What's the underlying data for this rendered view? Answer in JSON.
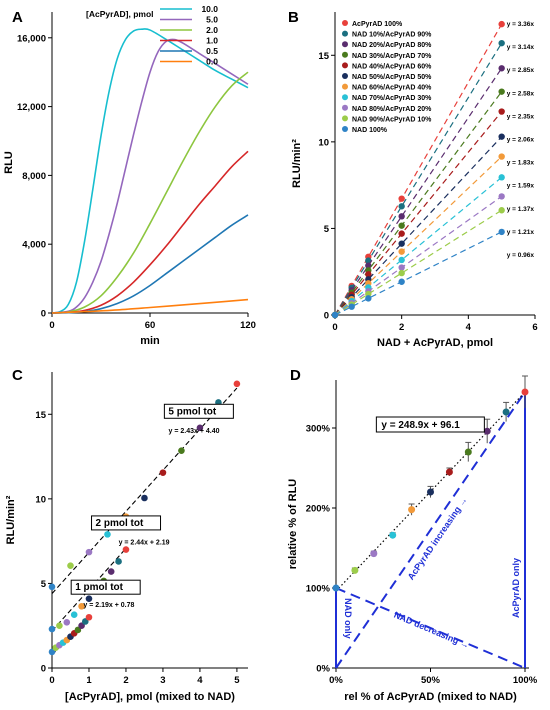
{
  "chart_data": [
    {
      "panel": "A",
      "type": "line",
      "xlabel": "min",
      "ylabel": "RLU",
      "xlim": [
        0,
        120
      ],
      "ylim": [
        0,
        17500
      ],
      "xticks": [
        0,
        60,
        120
      ],
      "yticks": [
        0,
        4000,
        8000,
        12000,
        16000
      ],
      "ytick_labels": [
        "0",
        "4,000",
        "8,000",
        "12,000",
        "16,000"
      ],
      "legend_title": "[AcPyrAD], pmol",
      "legend_position": "top-right",
      "grid": false,
      "series": [
        {
          "name": "10.0",
          "color": "#17becf",
          "x": [
            0,
            5,
            10,
            15,
            20,
            25,
            30,
            35,
            40,
            45,
            50,
            55,
            60,
            70,
            80,
            90,
            100,
            110,
            120
          ],
          "y": [
            0,
            80,
            500,
            1800,
            4200,
            7200,
            10300,
            12900,
            14800,
            15900,
            16400,
            16500,
            16450,
            15900,
            15300,
            14700,
            14100,
            13600,
            13100
          ]
        },
        {
          "name": "5.0",
          "color": "#9467bd",
          "x": [
            0,
            10,
            15,
            20,
            25,
            30,
            35,
            40,
            45,
            50,
            55,
            60,
            65,
            70,
            75,
            80,
            90,
            100,
            110,
            120
          ],
          "y": [
            0,
            100,
            350,
            900,
            1800,
            3000,
            4600,
            6400,
            8400,
            10400,
            12300,
            14000,
            15200,
            15800,
            15900,
            15700,
            15100,
            14500,
            13900,
            13300
          ]
        },
        {
          "name": "2.0",
          "color": "#8dc63f",
          "x": [
            0,
            10,
            20,
            30,
            40,
            50,
            60,
            70,
            80,
            90,
            100,
            110,
            120
          ],
          "y": [
            0,
            60,
            350,
            1000,
            2100,
            3500,
            5200,
            7000,
            8800,
            10500,
            12000,
            13200,
            14000
          ]
        },
        {
          "name": "1.0",
          "color": "#d62728",
          "x": [
            0,
            10,
            20,
            30,
            40,
            50,
            60,
            70,
            80,
            90,
            100,
            110,
            120
          ],
          "y": [
            0,
            30,
            150,
            450,
            1000,
            1800,
            2800,
            3900,
            5100,
            6300,
            7400,
            8500,
            9400
          ]
        },
        {
          "name": "0.5",
          "color": "#1f77b4",
          "x": [
            0,
            10,
            20,
            30,
            40,
            50,
            60,
            70,
            80,
            90,
            100,
            110,
            120
          ],
          "y": [
            0,
            15,
            80,
            250,
            550,
            1000,
            1600,
            2300,
            3000,
            3700,
            4400,
            5100,
            5700
          ]
        },
        {
          "name": "0.0",
          "color": "#ff7f0e",
          "x": [
            0,
            20,
            40,
            60,
            80,
            100,
            120
          ],
          "y": [
            0,
            80,
            180,
            320,
            470,
            620,
            780
          ]
        }
      ]
    },
    {
      "panel": "B",
      "type": "scatter",
      "xlabel": "NAD + AcPyrAD, pmol",
      "ylabel": "RLU/min²",
      "xlim": [
        0,
        6
      ],
      "ylim": [
        0,
        17.5
      ],
      "xticks": [
        0,
        2,
        4,
        6
      ],
      "yticks": [
        0,
        5,
        10,
        15
      ],
      "legend_position": "top-left",
      "x_points": [
        0,
        0.5,
        1,
        2,
        5
      ],
      "series": [
        {
          "name": "AcPyrAD 100%",
          "color": "#e8403b",
          "slope": 3.36,
          "equation": "y = 3.36x"
        },
        {
          "name": "NAD 10%/AcPyrAD 90%",
          "color": "#1b6f80",
          "slope": 3.14,
          "equation": "y = 3.14x"
        },
        {
          "name": "NAD 20%/AcPyrAD 80%",
          "color": "#5a2d6e",
          "slope": 2.85,
          "equation": "y = 2.85x"
        },
        {
          "name": "NAD 30%/AcPyrAD 70%",
          "color": "#4a7a1e",
          "slope": 2.58,
          "equation": "y = 2.58x"
        },
        {
          "name": "NAD 40%/AcPyrAD 60%",
          "color": "#a81c1c",
          "slope": 2.35,
          "equation": "y = 2.35x"
        },
        {
          "name": "NAD 50%/AcPyrAD 50%",
          "color": "#1a2f5e",
          "slope": 2.06,
          "equation": "y = 2.06x"
        },
        {
          "name": "NAD 60%/AcPyrAD 40%",
          "color": "#f29a3a",
          "slope": 1.83,
          "equation": "y = 1.83x"
        },
        {
          "name": "NAD 70%/AcPyrAD 30%",
          "color": "#29c1d6",
          "slope": 1.59,
          "equation": "y = 1.59x"
        },
        {
          "name": "NAD 80%/AcPyrAD 20%",
          "color": "#9b78c4",
          "slope": 1.37,
          "equation": "y = 1.37x"
        },
        {
          "name": "NAD 90%/AcPyrAD 10%",
          "color": "#9ccc4a",
          "slope": 1.21,
          "equation": "y = 1.21x"
        },
        {
          "name": "NAD 100%",
          "color": "#2f83c6",
          "slope": 0.96,
          "equation": "y = 0.96x"
        }
      ]
    },
    {
      "panel": "C",
      "type": "scatter",
      "xlabel": "[AcPyrAD], pmol (mixed to NAD)",
      "ylabel": "RLU/min²",
      "xlim": [
        0,
        5.3
      ],
      "ylim": [
        0,
        17.5
      ],
      "xticks": [
        0,
        1,
        2,
        3,
        4,
        5
      ],
      "yticks": [
        0,
        5,
        10,
        15
      ],
      "groups": [
        {
          "label": "5 pmol tot",
          "equation": "y = 2.43x + 4.40",
          "slope": 2.43,
          "intercept": 4.4,
          "x": [
            0,
            0.5,
            1,
            1.5,
            2,
            2.5,
            3,
            3.5,
            4,
            4.5,
            5
          ],
          "y": [
            4.8,
            6.05,
            6.85,
            7.9,
            8.95,
            10.05,
            11.55,
            12.85,
            14.2,
            15.7,
            16.8
          ]
        },
        {
          "label": "2 pmol tot",
          "equation": "y = 2.44x + 2.19",
          "slope": 2.44,
          "intercept": 2.19,
          "x": [
            0,
            0.2,
            0.4,
            0.6,
            0.8,
            1,
            1.2,
            1.4,
            1.6,
            1.8,
            2
          ],
          "y": [
            2.3,
            2.5,
            2.7,
            3.15,
            3.65,
            4.1,
            4.7,
            5.15,
            5.7,
            6.3,
            7.0
          ]
        },
        {
          "label": "1 pmol tot",
          "equation": "y = 2.19x + 0.78",
          "slope": 2.19,
          "intercept": 0.78,
          "x": [
            0,
            0.1,
            0.2,
            0.3,
            0.4,
            0.5,
            0.6,
            0.7,
            0.8,
            0.9,
            1
          ],
          "y": [
            0.95,
            1.2,
            1.35,
            1.5,
            1.65,
            1.85,
            2.05,
            2.25,
            2.5,
            2.75,
            3.0
          ]
        }
      ],
      "point_colors": [
        "#2f83c6",
        "#9ccc4a",
        "#9b78c4",
        "#29c1d6",
        "#f29a3a",
        "#1a2f5e",
        "#a81c1c",
        "#4a7a1e",
        "#5a2d6e",
        "#1b6f80",
        "#e8403b"
      ]
    },
    {
      "panel": "D",
      "type": "scatter",
      "xlabel": "rel % of AcPyrAD (mixed to NAD)",
      "ylabel": "relative % of RLU",
      "xlim": [
        0,
        1.0
      ],
      "ylim": [
        0,
        3.6
      ],
      "xticks": [
        0,
        0.5,
        1.0
      ],
      "xtick_labels": [
        "0%",
        "50%",
        "100%"
      ],
      "yticks": [
        0,
        1,
        2,
        3
      ],
      "ytick_labels": [
        "0%",
        "100%",
        "200%",
        "300%"
      ],
      "equation": "y = 248.9x + 96.1",
      "x": [
        0,
        0.1,
        0.2,
        0.3,
        0.4,
        0.5,
        0.6,
        0.7,
        0.8,
        0.9,
        1.0
      ],
      "y": [
        1.0,
        1.22,
        1.43,
        1.66,
        1.98,
        2.2,
        2.45,
        2.7,
        2.96,
        3.2,
        3.45
      ],
      "err": [
        0,
        0.03,
        0.03,
        0.03,
        0.07,
        0.07,
        0.05,
        0.12,
        0.15,
        0.12,
        0.2
      ],
      "point_colors": [
        "#2f83c6",
        "#9ccc4a",
        "#9b78c4",
        "#29c1d6",
        "#f29a3a",
        "#1a2f5e",
        "#a81c1c",
        "#4a7a1e",
        "#5a2d6e",
        "#1b6f80",
        "#e8403b"
      ],
      "annotations": {
        "nad_only": "NAD only",
        "acpyrad_only": "AcPyrAD only",
        "acpyrad_increasing": "AcPyrAD increasing",
        "nad_decreasing": "NAD decreasing",
        "arrow": "→"
      }
    }
  ],
  "panel_labels": [
    "A",
    "B",
    "C",
    "D"
  ]
}
